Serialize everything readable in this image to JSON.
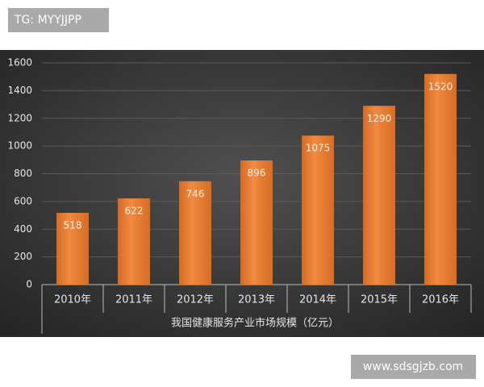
{
  "chart_data": {
    "type": "bar",
    "x_label": "我国健康服务产业市场规模（亿元）",
    "categories": [
      "2010年",
      "2011年",
      "2012年",
      "2013年",
      "2014年",
      "2015年",
      "2016年"
    ],
    "values": [
      518,
      622,
      746,
      896,
      1075,
      1290,
      1520
    ],
    "color": "#f07a28",
    "ylim": [
      0,
      1600
    ],
    "yticks": [
      0,
      200,
      400,
      600,
      800,
      1000,
      1200,
      1400,
      1600
    ],
    "grid": true
  },
  "watermark_top": "TG: MYYJJPP",
  "watermark_bottom": "www.sdsgjzb.com"
}
